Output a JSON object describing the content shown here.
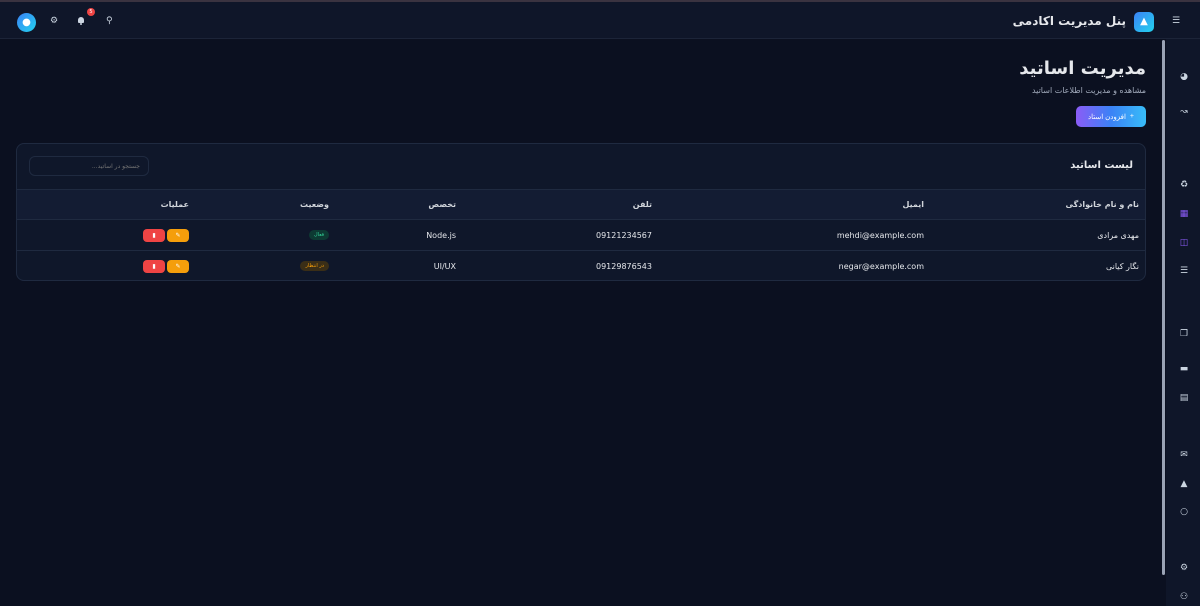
{
  "topbar": {
    "brand": "پنل مدیریت اکادمی",
    "notification_count": "5"
  },
  "page": {
    "title": "مدیریت اساتید",
    "subtitle": "مشاهده و مدیریت اطلاعات اساتید",
    "add_button": "افزودن استاد"
  },
  "card": {
    "title": "لیست اساتید",
    "search_placeholder": "جستجو در اساتید..."
  },
  "table": {
    "headers": [
      "نام و نام خانوادگی",
      "ایمیل",
      "تلفن",
      "تخصص",
      "وضعیت",
      "عملیات"
    ],
    "rows": [
      {
        "name": "مهدی مرادی",
        "email": "mehdi@example.com",
        "phone": "09121234567",
        "specialty": "Node.js",
        "status": "فعال",
        "status_type": "active"
      },
      {
        "name": "نگار کیانی",
        "email": "negar@example.com",
        "phone": "09129876543",
        "specialty": "UI/UX",
        "status": "در انتظار",
        "status_type": "pending"
      }
    ]
  },
  "colors": {
    "accent": "#8b5cf6",
    "active": "#34d399",
    "pending": "#f59e0b",
    "danger": "#ef4444",
    "background": "#0b1020"
  }
}
